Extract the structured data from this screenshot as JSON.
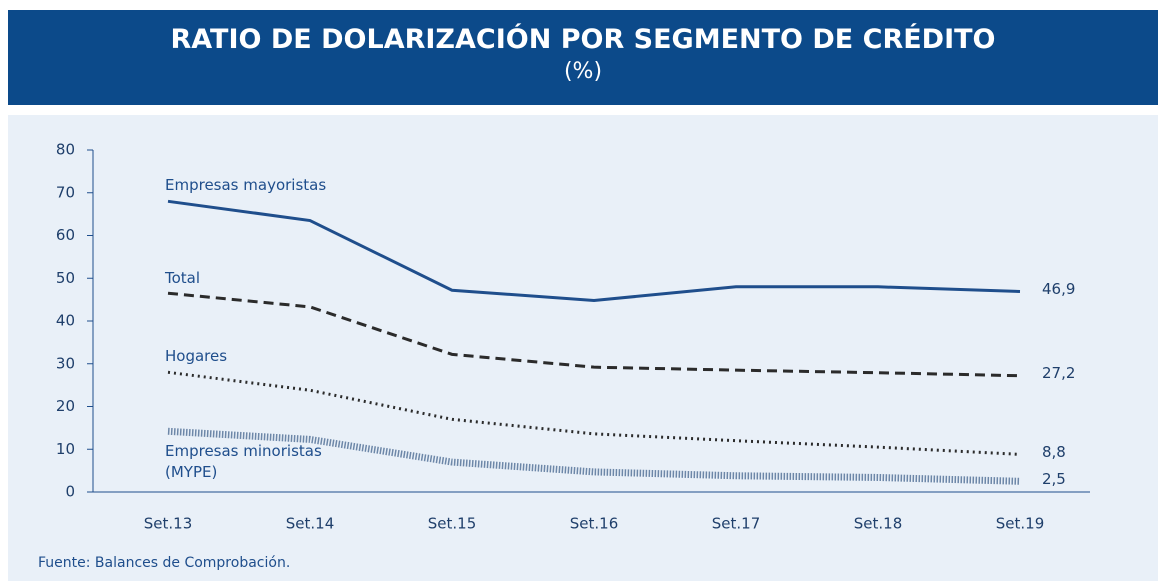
{
  "chart_data": {
    "type": "line",
    "title": "RATIO DE DOLARIZACIÓN POR SEGMENTO DE CRÉDITO",
    "subtitle": "(%)",
    "source": "Fuente: Balances de Comprobación.",
    "categories": [
      "Set.13",
      "Set.14",
      "Set.15",
      "Set.16",
      "Set.17",
      "Set.18",
      "Set.19"
    ],
    "series": [
      {
        "name": "Empresas mayoristas",
        "color": "#1f4e8c",
        "style": "solid",
        "values": [
          68,
          63.5,
          47.2,
          44.8,
          48,
          48,
          46.9
        ],
        "value_labels": [
          null,
          null,
          null,
          null,
          null,
          null,
          "46,9"
        ]
      },
      {
        "name": "Total",
        "color": "#2b2b2b",
        "style": "dashed",
        "values": [
          46.5,
          43.3,
          32.2,
          29.2,
          28.5,
          27.9,
          27.2
        ],
        "value_labels": [
          null,
          null,
          null,
          null,
          null,
          null,
          "27,2"
        ]
      },
      {
        "name": "Hogares",
        "color": "#2b2b2b",
        "style": "dotted",
        "values": [
          28,
          23.8,
          17,
          13.6,
          12,
          10.5,
          8.8
        ],
        "value_labels": [
          null,
          null,
          null,
          null,
          null,
          null,
          "8,8"
        ]
      },
      {
        "name": "Empresas minoristas (MYPE)",
        "color": "#6d87a8",
        "style": "striped",
        "values": [
          14.2,
          12.3,
          7,
          4.7,
          3.8,
          3.4,
          2.5
        ],
        "value_labels": [
          null,
          null,
          null,
          null,
          null,
          null,
          "2,5"
        ]
      }
    ],
    "ylim": [
      0,
      80
    ],
    "yticks": [
      0,
      10,
      20,
      30,
      40,
      50,
      60,
      70,
      80
    ]
  }
}
